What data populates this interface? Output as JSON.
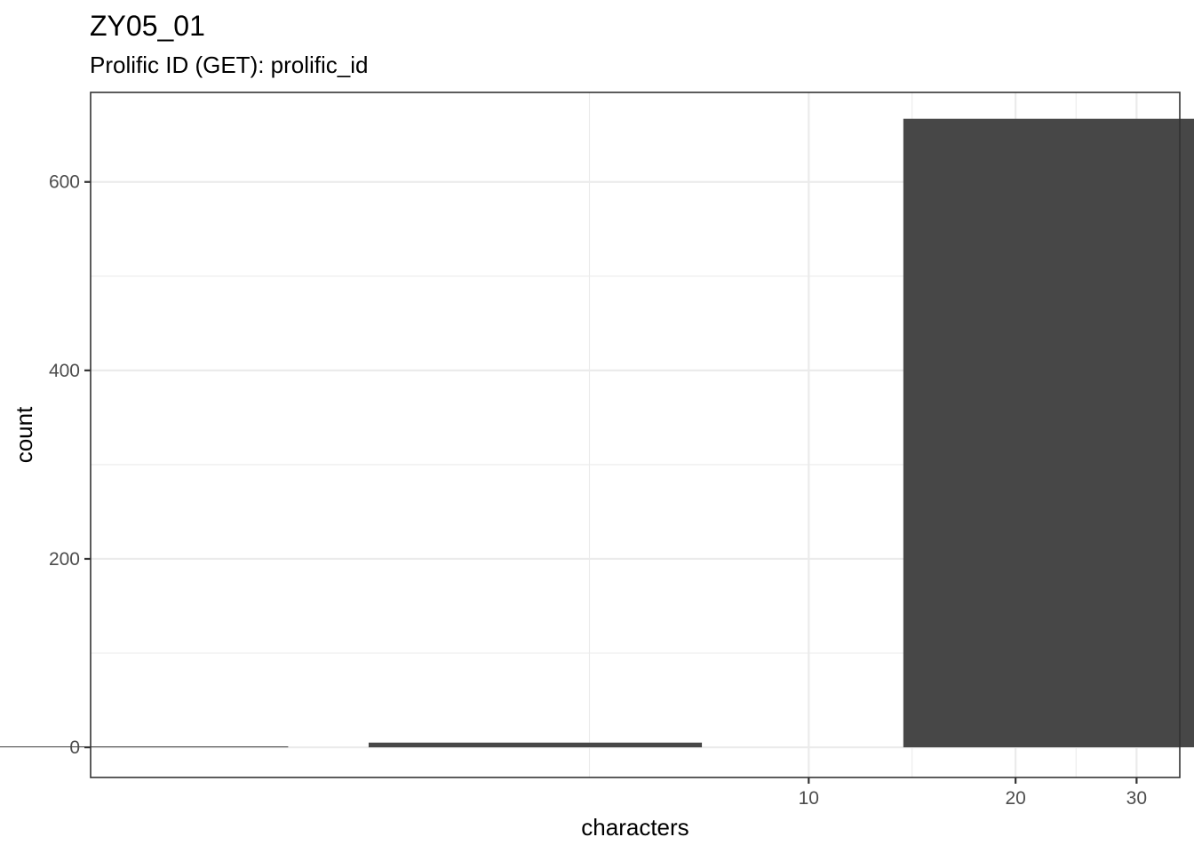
{
  "title": "ZY05_01",
  "subtitle": "Prolific ID (GET): prolific_id",
  "chart_data": {
    "type": "bar",
    "xscale": "log10",
    "xlabel": "characters",
    "ylabel": "count",
    "x_ticks": [
      10,
      20,
      30
    ],
    "x_tick_labels": [
      "10",
      "20",
      "30"
    ],
    "y_ticks": [
      0,
      200,
      400,
      600
    ],
    "y_tick_labels": [
      "0",
      "200",
      "400",
      "600"
    ],
    "ylim": [
      -32,
      695
    ],
    "xlim_log10": [
      -0.045,
      1.54
    ],
    "bars": [
      {
        "x": 1,
        "count": 1
      },
      {
        "x": 4,
        "count": 5
      },
      {
        "x": 24,
        "count": 667
      }
    ],
    "bar_color": "#474747",
    "grid": true,
    "legend": "none"
  }
}
